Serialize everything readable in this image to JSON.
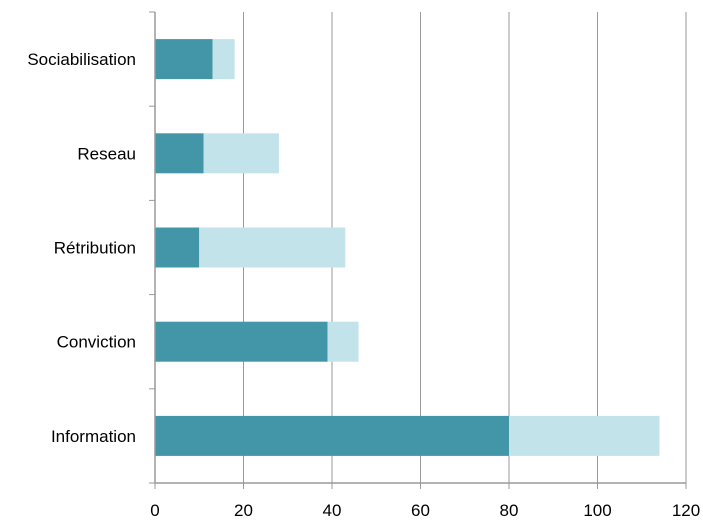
{
  "chart_data": {
    "type": "bar",
    "orientation": "horizontal",
    "stacked": true,
    "categories": [
      "Information",
      "Conviction",
      "Rétribution",
      "Reseau",
      "Sociabilisation"
    ],
    "series": [
      {
        "values": [
          80,
          39,
          10,
          11,
          13
        ],
        "color": "#4296a8"
      },
      {
        "values": [
          34,
          7,
          33,
          17,
          5
        ],
        "color": "#c3e3eb"
      }
    ],
    "xlim": [
      0,
      120
    ],
    "x_ticks": [
      "0",
      "20",
      "40",
      "60",
      "80",
      "100",
      "120"
    ],
    "grid": true,
    "legend": "none",
    "title": "",
    "xlabel": "",
    "ylabel": ""
  }
}
